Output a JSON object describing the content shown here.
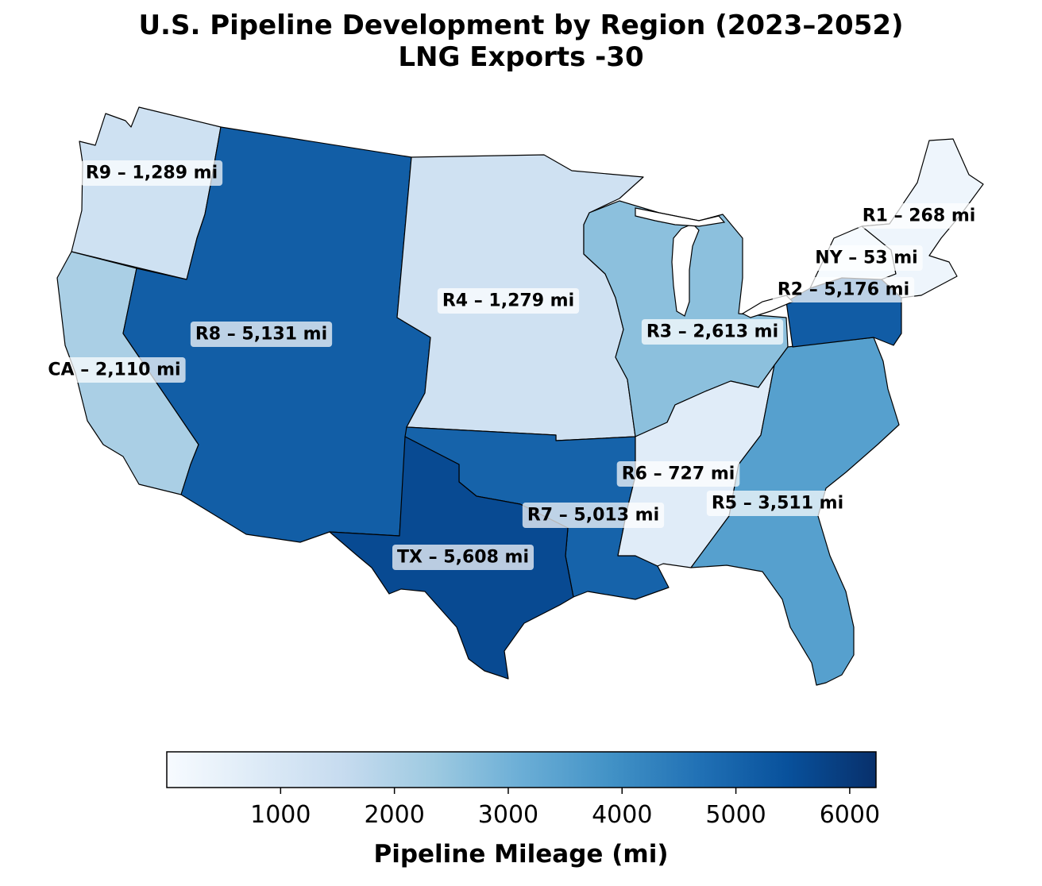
{
  "title": "U.S. Pipeline Development by Region (2023–2052)",
  "subtitle": "LNG Exports -30",
  "colorbar": {
    "label": "Pipeline Mileage (mi)",
    "min": 0,
    "max": 6231,
    "ticks": [
      1000,
      2000,
      3000,
      4000,
      5000,
      6000
    ],
    "tick_labels": [
      "1000",
      "2000",
      "3000",
      "4000",
      "5000",
      "6000"
    ],
    "colormap": "Blues",
    "colors": [
      "#f7fbff",
      "#deebf7",
      "#c6dbef",
      "#9ecae1",
      "#6baed6",
      "#4292c6",
      "#2171b5",
      "#08519c",
      "#08306b"
    ]
  },
  "chart_data": {
    "type": "choropleth",
    "unit": "mi",
    "regions": [
      {
        "id": "R9",
        "value": 1289,
        "label": "R9 – 1,289 mi"
      },
      {
        "id": "CA",
        "value": 2110,
        "label": "CA – 2,110 mi"
      },
      {
        "id": "R8",
        "value": 5131,
        "label": "R8 – 5,131 mi"
      },
      {
        "id": "R4",
        "value": 1279,
        "label": "R4 – 1,279 mi"
      },
      {
        "id": "R3",
        "value": 2613,
        "label": "R3 – 2,613 mi"
      },
      {
        "id": "R7",
        "value": 5013,
        "label": "R7 – 5,013 mi"
      },
      {
        "id": "TX",
        "value": 5608,
        "label": "TX – 5,608 mi"
      },
      {
        "id": "R6",
        "value": 727,
        "label": "R6 – 727 mi"
      },
      {
        "id": "R5",
        "value": 3511,
        "label": "R5 – 3,511 mi"
      },
      {
        "id": "R2",
        "value": 5176,
        "label": "R2 – 5,176 mi"
      },
      {
        "id": "NY",
        "value": 53,
        "label": "NY – 53 mi"
      },
      {
        "id": "R1",
        "value": 268,
        "label": "R1 – 268 mi"
      }
    ]
  }
}
